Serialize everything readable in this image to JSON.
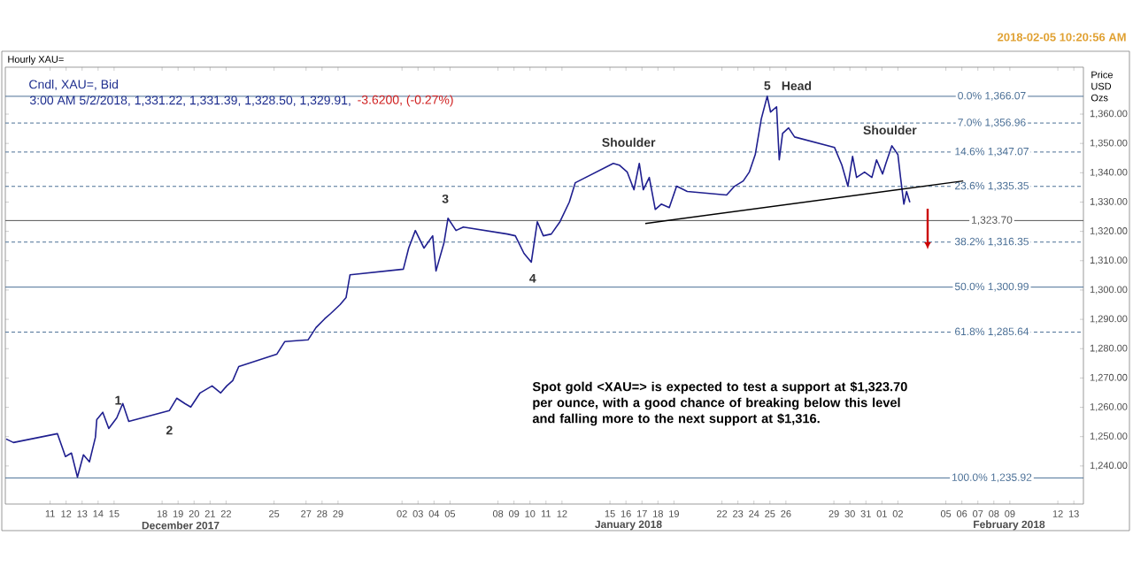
{
  "chart_data": {
    "type": "line",
    "title": "Hourly XAU=",
    "subtitle": "Cndl, XAU=, Bid",
    "ylabel": "Price USD Ozs",
    "xlim": [
      "2017-12-08T04:48",
      "2018-02-13T14:24"
    ],
    "ylim": [
      1227,
      1376
    ],
    "xticks": [
      {
        "value": "2017-12-11",
        "label": "11"
      },
      {
        "value": "2017-12-12",
        "label": "12"
      },
      {
        "value": "2017-12-13",
        "label": "13"
      },
      {
        "value": "2017-12-14",
        "label": "14"
      },
      {
        "value": "2017-12-15",
        "label": "15"
      },
      {
        "value": "2017-12-18",
        "label": "18"
      },
      {
        "value": "2017-12-19",
        "label": "19"
      },
      {
        "value": "2017-12-20",
        "label": "20"
      },
      {
        "value": "2017-12-21",
        "label": "21"
      },
      {
        "value": "2017-12-22",
        "label": "22"
      },
      {
        "value": "2017-12-25",
        "label": "25"
      },
      {
        "value": "2017-12-27",
        "label": "27"
      },
      {
        "value": "2017-12-28",
        "label": "28"
      },
      {
        "value": "2017-12-29",
        "label": "29"
      },
      {
        "value": "2018-01-02",
        "label": "02"
      },
      {
        "value": "2018-01-03",
        "label": "03"
      },
      {
        "value": "2018-01-04",
        "label": "04"
      },
      {
        "value": "2018-01-05",
        "label": "05"
      },
      {
        "value": "2018-01-08",
        "label": "08"
      },
      {
        "value": "2018-01-09",
        "label": "09"
      },
      {
        "value": "2018-01-10",
        "label": "10"
      },
      {
        "value": "2018-01-11",
        "label": "11"
      },
      {
        "value": "2018-01-12",
        "label": "12"
      },
      {
        "value": "2018-01-15",
        "label": "15"
      },
      {
        "value": "2018-01-16",
        "label": "16"
      },
      {
        "value": "2018-01-17",
        "label": "17"
      },
      {
        "value": "2018-01-18",
        "label": "18"
      },
      {
        "value": "2018-01-19",
        "label": "19"
      },
      {
        "value": "2018-01-22",
        "label": "22"
      },
      {
        "value": "2018-01-23",
        "label": "23"
      },
      {
        "value": "2018-01-24",
        "label": "24"
      },
      {
        "value": "2018-01-25",
        "label": "25"
      },
      {
        "value": "2018-01-26",
        "label": "26"
      },
      {
        "value": "2018-01-29",
        "label": "29"
      },
      {
        "value": "2018-01-30",
        "label": "30"
      },
      {
        "value": "2018-01-31",
        "label": "31"
      },
      {
        "value": "2018-02-01",
        "label": "01"
      },
      {
        "value": "2018-02-02",
        "label": "02"
      },
      {
        "value": "2018-02-05",
        "label": "05"
      },
      {
        "value": "2018-02-06",
        "label": "06"
      },
      {
        "value": "2018-02-07",
        "label": "07"
      },
      {
        "value": "2018-02-08",
        "label": "08"
      },
      {
        "value": "2018-02-09",
        "label": "09"
      },
      {
        "value": "2018-02-12",
        "label": "12"
      },
      {
        "value": "2018-02-13",
        "label": "13"
      }
    ],
    "yticks": [
      {
        "value": 1240,
        "label": "1,240.00"
      },
      {
        "value": 1250,
        "label": "1,250.00"
      },
      {
        "value": 1260,
        "label": "1,260.00"
      },
      {
        "value": 1270,
        "label": "1,270.00"
      },
      {
        "value": 1280,
        "label": "1,280.00"
      },
      {
        "value": 1290,
        "label": "1,290.00"
      },
      {
        "value": 1300,
        "label": "1,300.00"
      },
      {
        "value": 1310,
        "label": "1,310.00"
      },
      {
        "value": 1320,
        "label": "1,320.00"
      },
      {
        "value": 1330,
        "label": "1,330.00"
      },
      {
        "value": 1340,
        "label": "1,340.00"
      },
      {
        "value": 1350,
        "label": "1,350.00"
      },
      {
        "value": 1360,
        "label": "1,360.00"
      }
    ],
    "series": [
      {
        "color": "#1f1f8f",
        "x": [
          "2017-12-08T06:00",
          "2017-12-08T17:00",
          "2017-12-11T11:00",
          "2017-12-11T23:00",
          "2017-12-12T08:00",
          "2017-12-12T17:00",
          "2017-12-13T02:00",
          "2017-12-13T11:00",
          "2017-12-13T20:00",
          "2017-12-13T22:00",
          "2017-12-14T07:00",
          "2017-12-14T16:00",
          "2017-12-15T04:00",
          "2017-12-15T13:00",
          "2017-12-15T22:00",
          "2017-12-18T11:00",
          "2017-12-18T22:00",
          "2017-12-19T10:00",
          "2017-12-19T19:00",
          "2017-12-20T09:00",
          "2017-12-21T03:00",
          "2017-12-21T16:00",
          "2017-12-22T01:00",
          "2017-12-22T10:00",
          "2017-12-22T19:00",
          "2017-12-25T04:00",
          "2017-12-25T16:00",
          "2017-12-27T03:00",
          "2017-12-27T15:00",
          "2017-12-28T04:00",
          "2017-12-28T13:00",
          "2017-12-29T03:00",
          "2017-12-29T12:00",
          "2017-12-29T18:00",
          "2018-01-02T02:00",
          "2018-01-02T10:00",
          "2018-01-02T20:00",
          "2018-01-03T09:00",
          "2018-01-03T22:00",
          "2018-01-04T03:00",
          "2018-01-04T15:00",
          "2018-01-04T21:00",
          "2018-01-05T09:00",
          "2018-01-05T20:00",
          "2018-01-08T14:00",
          "2018-01-09T02:00",
          "2018-01-09T15:00",
          "2018-01-10T02:00",
          "2018-01-10T11:00",
          "2018-01-10T20:00",
          "2018-01-11T08:00",
          "2018-01-11T21:00",
          "2018-01-12T11:00",
          "2018-01-12T20:00",
          "2018-01-15T05:00",
          "2018-01-15T14:00",
          "2018-01-16T02:00",
          "2018-01-16T12:00",
          "2018-01-16T20:00",
          "2018-01-17T02:00",
          "2018-01-17T11:00",
          "2018-01-17T20:00",
          "2018-01-18T05:00",
          "2018-01-18T17:00",
          "2018-01-19T04:00",
          "2018-01-19T20:00",
          "2018-01-22T07:00",
          "2018-01-22T19:00",
          "2018-01-23T08:00",
          "2018-01-23T17:00",
          "2018-01-24T02:00",
          "2018-01-24T11:00",
          "2018-01-24T20:00",
          "2018-01-25T01:00",
          "2018-01-25T10:00",
          "2018-01-25T14:00",
          "2018-01-25T19:00",
          "2018-01-26T04:00",
          "2018-01-26T13:00",
          "2018-01-29T01:00",
          "2018-01-29T12:00",
          "2018-01-29T21:00",
          "2018-01-30T04:00",
          "2018-01-30T10:00",
          "2018-01-30T22:00",
          "2018-01-31T09:00",
          "2018-01-31T16:00",
          "2018-02-01T01:00",
          "2018-02-01T06:00",
          "2018-02-01T15:00",
          "2018-02-02T00:00",
          "2018-02-02T04:00",
          "2018-02-02T09:00",
          "2018-02-02T13:00",
          "2018-02-02T18:00"
        ],
        "values": [
          1249.2,
          1248.0,
          1251.0,
          1243.2,
          1244.4,
          1236.2,
          1243.8,
          1241.4,
          1249.8,
          1255.8,
          1258.3,
          1252.8,
          1256.4,
          1261.3,
          1255.2,
          1258.9,
          1263.1,
          1261.3,
          1260.1,
          1264.9,
          1267.3,
          1264.9,
          1267.3,
          1269.1,
          1273.9,
          1278.1,
          1282.4,
          1283.0,
          1287.2,
          1290.2,
          1292.0,
          1295.0,
          1297.4,
          1305.2,
          1307.1,
          1314.3,
          1320.3,
          1314.3,
          1318.5,
          1306.5,
          1316.1,
          1324.5,
          1320.3,
          1321.5,
          1319.1,
          1318.5,
          1312.5,
          1309.5,
          1323.3,
          1318.5,
          1319.1,
          1323.3,
          1330.0,
          1336.6,
          1343.2,
          1342.6,
          1340.2,
          1334.2,
          1343.2,
          1334.2,
          1338.4,
          1327.5,
          1329.3,
          1328.1,
          1335.4,
          1333.6,
          1332.4,
          1335.4,
          1337.2,
          1340.2,
          1346.2,
          1358.3,
          1366.1,
          1360.7,
          1362.5,
          1344.4,
          1353.4,
          1355.3,
          1352.2,
          1348.6,
          1342.6,
          1335.4,
          1345.6,
          1338.4,
          1340.2,
          1338.4,
          1344.4,
          1339.6,
          1343.2,
          1349.2,
          1346.2,
          1338.4,
          1329.3,
          1333.6,
          1329.9
        ]
      },
      {
        "type": "line",
        "color": "#000000",
        "x": [
          "2018-01-17T05:00",
          "2018-02-06T02:00"
        ],
        "values": [
          1322.7,
          1337.2
        ]
      }
    ],
    "ref_lines": [
      {
        "axis": "y",
        "value": 1366.07,
        "label": "0.0%  1,366.07",
        "color": "#4a6f96",
        "line_style": "solid"
      },
      {
        "axis": "y",
        "value": 1356.96,
        "label": "7.0%  1,356.96",
        "color": "#4a6f96",
        "line_style": "dashed"
      },
      {
        "axis": "y",
        "value": 1347.07,
        "label": "14.6%  1,347.07",
        "color": "#4a6f96",
        "line_style": "dashed"
      },
      {
        "axis": "y",
        "value": 1335.35,
        "label": "23.6%  1,335.35",
        "color": "#4a6f96",
        "line_style": "dashed"
      },
      {
        "axis": "y",
        "value": 1323.7,
        "label": "1,323.70",
        "color": "#555555",
        "line_style": "solid"
      },
      {
        "axis": "y",
        "value": 1316.35,
        "label": "38.2%  1,316.35",
        "color": "#4a6f96",
        "line_style": "dashed"
      },
      {
        "axis": "y",
        "value": 1300.99,
        "label": "50.0%  1,300.99",
        "color": "#4a6f96",
        "line_style": "solid"
      },
      {
        "axis": "y",
        "value": 1285.64,
        "label": "61.8%  1,285.64",
        "color": "#4a6f96",
        "line_style": "dashed"
      },
      {
        "axis": "y",
        "value": 1235.92,
        "label": "100.0%  1,235.92",
        "color": "#4a6f96",
        "line_style": "solid"
      }
    ],
    "annotations": [
      "3:00 AM 5/2/2018, 1,331.22, 1,331.39, 1,328.50, 1,329.91,",
      "-3.6200, (-0.27%)",
      "2018-02-05 10:20:56 AM",
      "December 2017",
      "January 2018",
      "February 2018",
      "Spot gold <XAU=> is expected to test a support at $1,323.70 per ounce, with a good chance of breaking below this level and falling more to the next support at $1,316.",
      "1",
      "2",
      "3",
      "4",
      "5",
      "Head",
      "Shoulder",
      "Shoulder"
    ]
  }
}
